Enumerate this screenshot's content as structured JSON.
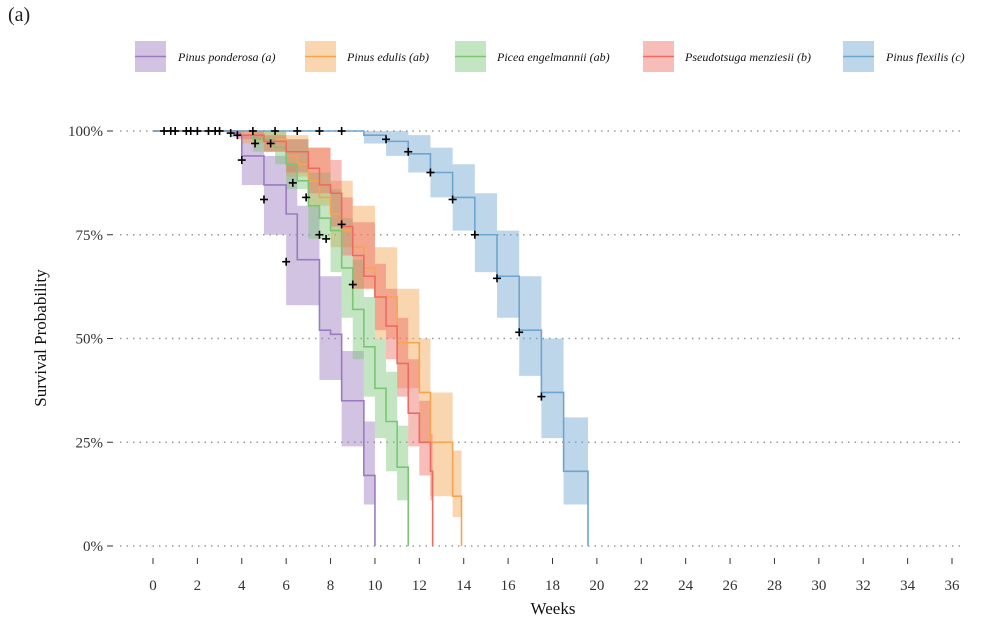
{
  "panel_label": "(a)",
  "chart_data": {
    "type": "line",
    "subtype": "kaplan-meier step curves with confidence bands",
    "title": "",
    "xlabel": "Weeks",
    "ylabel": "Survival Probability",
    "xlim": [
      0,
      36
    ],
    "ylim": [
      0,
      1
    ],
    "x_ticks": [
      0,
      2,
      4,
      6,
      8,
      10,
      12,
      14,
      16,
      18,
      20,
      22,
      24,
      26,
      28,
      30,
      32,
      34,
      36
    ],
    "y_ticks": [
      0,
      0.25,
      0.5,
      0.75,
      1.0
    ],
    "y_tick_labels": [
      "0%",
      "25%",
      "50%",
      "75%",
      "100%"
    ],
    "grid": "horizontal dotted",
    "legend_position": "top",
    "series": [
      {
        "name": "Pinus ponderosa (a)",
        "color": "#9b7bbf",
        "steps": [
          [
            0,
            1.0
          ],
          [
            3.5,
            0.995
          ],
          [
            4,
            0.94
          ],
          [
            5,
            0.87
          ],
          [
            6,
            0.8
          ],
          [
            6.5,
            0.69
          ],
          [
            7.5,
            0.52
          ],
          [
            8,
            0.51
          ],
          [
            8.5,
            0.35
          ],
          [
            9.5,
            0.17
          ],
          [
            10,
            0.0
          ]
        ],
        "lower": [
          [
            0,
            1.0
          ],
          [
            3.5,
            0.985
          ],
          [
            4,
            0.87
          ],
          [
            5,
            0.75
          ],
          [
            6,
            0.58
          ],
          [
            6.5,
            0.58
          ],
          [
            7.5,
            0.4
          ],
          [
            8.5,
            0.24
          ],
          [
            9.5,
            0.1
          ],
          [
            10,
            0.0
          ]
        ],
        "upper": [
          [
            0,
            1.0
          ],
          [
            3.5,
            1.0
          ],
          [
            4,
            0.99
          ],
          [
            5,
            0.94
          ],
          [
            6,
            0.92
          ],
          [
            6.5,
            0.82
          ],
          [
            7.5,
            0.65
          ],
          [
            8.5,
            0.47
          ],
          [
            9.5,
            0.3
          ],
          [
            10,
            0.0
          ]
        ],
        "censored_x": [
          0.5,
          0.8,
          1.0,
          1.5,
          1.7,
          2.0,
          2.5,
          2.8,
          3.0,
          3.5,
          4.0,
          4.6,
          5.0,
          6.0
        ],
        "censored_y": [
          1.0,
          1.0,
          1.0,
          1.0,
          1.0,
          1.0,
          1.0,
          1.0,
          1.0,
          0.995,
          0.93,
          0.97,
          0.835,
          0.685
        ]
      },
      {
        "name": "Pinus edulis (ab)",
        "color": "#f5a550",
        "steps": [
          [
            0,
            1.0
          ],
          [
            4,
            0.99
          ],
          [
            5,
            0.98
          ],
          [
            6,
            0.94
          ],
          [
            6.5,
            0.92
          ],
          [
            7,
            0.88
          ],
          [
            7.5,
            0.84
          ],
          [
            8,
            0.8
          ],
          [
            8.5,
            0.76
          ],
          [
            9,
            0.72
          ],
          [
            9.5,
            0.67
          ],
          [
            10,
            0.6
          ],
          [
            11,
            0.49
          ],
          [
            12,
            0.37
          ],
          [
            12.5,
            0.25
          ],
          [
            13.5,
            0.12
          ],
          [
            13.9,
            0.0
          ]
        ],
        "lower": [
          [
            0,
            1.0
          ],
          [
            4,
            0.97
          ],
          [
            5,
            0.95
          ],
          [
            6,
            0.89
          ],
          [
            7,
            0.82
          ],
          [
            8,
            0.72
          ],
          [
            9,
            0.62
          ],
          [
            10,
            0.5
          ],
          [
            11,
            0.38
          ],
          [
            12,
            0.25
          ],
          [
            12.5,
            0.12
          ],
          [
            13.5,
            0.07
          ],
          [
            13.9,
            0.0
          ]
        ],
        "upper": [
          [
            0,
            1.0
          ],
          [
            4,
            1.0
          ],
          [
            5,
            1.0
          ],
          [
            6,
            0.99
          ],
          [
            7,
            0.96
          ],
          [
            8,
            0.88
          ],
          [
            9,
            0.82
          ],
          [
            10,
            0.72
          ],
          [
            11,
            0.62
          ],
          [
            12,
            0.5
          ],
          [
            12.5,
            0.37
          ],
          [
            13.5,
            0.23
          ],
          [
            13.9,
            0.0
          ]
        ],
        "censored_x": [],
        "censored_y": []
      },
      {
        "name": "Picea engelmannii (ab)",
        "color": "#7cc576",
        "steps": [
          [
            0,
            1.0
          ],
          [
            4.5,
            0.98
          ],
          [
            5.5,
            0.96
          ],
          [
            6,
            0.92
          ],
          [
            6.5,
            0.88
          ],
          [
            7,
            0.82
          ],
          [
            7.5,
            0.79
          ],
          [
            8,
            0.76
          ],
          [
            8.5,
            0.67
          ],
          [
            9,
            0.57
          ],
          [
            9.5,
            0.48
          ],
          [
            10,
            0.38
          ],
          [
            10.5,
            0.3
          ],
          [
            11,
            0.19
          ],
          [
            11.5,
            0.0
          ]
        ],
        "lower": [
          [
            0,
            1.0
          ],
          [
            4.5,
            0.95
          ],
          [
            5.5,
            0.92
          ],
          [
            6,
            0.86
          ],
          [
            7,
            0.74
          ],
          [
            8,
            0.66
          ],
          [
            8.5,
            0.55
          ],
          [
            9,
            0.45
          ],
          [
            9.5,
            0.36
          ],
          [
            10,
            0.26
          ],
          [
            10.5,
            0.18
          ],
          [
            11,
            0.11
          ],
          [
            11.5,
            0.0
          ]
        ],
        "upper": [
          [
            0,
            1.0
          ],
          [
            4.5,
            1.0
          ],
          [
            5.5,
            1.0
          ],
          [
            6,
            0.98
          ],
          [
            7,
            0.9
          ],
          [
            8,
            0.86
          ],
          [
            8.5,
            0.79
          ],
          [
            9,
            0.69
          ],
          [
            9.5,
            0.6
          ],
          [
            10,
            0.5
          ],
          [
            10.5,
            0.42
          ],
          [
            11,
            0.29
          ],
          [
            11.5,
            0.0
          ]
        ],
        "censored_x": [
          6.3,
          6.9
        ],
        "censored_y": [
          0.875,
          0.84
        ]
      },
      {
        "name": "Pseudotsuga menziesii (b)",
        "color": "#ec6c64",
        "steps": [
          [
            0,
            1.0
          ],
          [
            3.8,
            0.99
          ],
          [
            5,
            0.975
          ],
          [
            6,
            0.95
          ],
          [
            7,
            0.91
          ],
          [
            7.5,
            0.87
          ],
          [
            8,
            0.85
          ],
          [
            8.5,
            0.77
          ],
          [
            9,
            0.7
          ],
          [
            9.5,
            0.65
          ],
          [
            10,
            0.6
          ],
          [
            10.5,
            0.53
          ],
          [
            11,
            0.44
          ],
          [
            11.5,
            0.32
          ],
          [
            12,
            0.25
          ],
          [
            12.5,
            0.18
          ],
          [
            12.6,
            0.0
          ]
        ],
        "lower": [
          [
            0,
            1.0
          ],
          [
            3.8,
            0.98
          ],
          [
            5,
            0.95
          ],
          [
            6,
            0.9
          ],
          [
            7,
            0.85
          ],
          [
            8,
            0.77
          ],
          [
            8.5,
            0.7
          ],
          [
            9,
            0.62
          ],
          [
            10,
            0.52
          ],
          [
            10.5,
            0.45
          ],
          [
            11,
            0.36
          ],
          [
            11.5,
            0.24
          ],
          [
            12,
            0.17
          ],
          [
            12.5,
            0.11
          ],
          [
            12.6,
            0.0
          ]
        ],
        "upper": [
          [
            0,
            1.0
          ],
          [
            3.8,
            1.0
          ],
          [
            5,
            0.99
          ],
          [
            6,
            0.98
          ],
          [
            7,
            0.96
          ],
          [
            8,
            0.93
          ],
          [
            8.5,
            0.84
          ],
          [
            9,
            0.78
          ],
          [
            10,
            0.68
          ],
          [
            10.5,
            0.62
          ],
          [
            11,
            0.55
          ],
          [
            11.5,
            0.45
          ],
          [
            12,
            0.35
          ],
          [
            12.5,
            0.27
          ],
          [
            12.6,
            0.0
          ]
        ],
        "censored_x": [
          3.8,
          5.3,
          7.5,
          7.8,
          8.5,
          9.0
        ],
        "censored_y": [
          0.99,
          0.97,
          0.75,
          0.74,
          0.775,
          0.63
        ]
      },
      {
        "name": "Pinus flexilis (c)",
        "color": "#6ea5cf",
        "steps": [
          [
            0,
            1.0
          ],
          [
            9.5,
            0.99
          ],
          [
            10.5,
            0.975
          ],
          [
            11.5,
            0.945
          ],
          [
            12.5,
            0.9
          ],
          [
            13.5,
            0.84
          ],
          [
            14.5,
            0.75
          ],
          [
            15.5,
            0.65
          ],
          [
            16.5,
            0.52
          ],
          [
            17.5,
            0.37
          ],
          [
            18.5,
            0.18
          ],
          [
            19.6,
            0.0
          ]
        ],
        "lower": [
          [
            0,
            1.0
          ],
          [
            9.5,
            0.97
          ],
          [
            10.5,
            0.94
          ],
          [
            11.5,
            0.9
          ],
          [
            12.5,
            0.84
          ],
          [
            13.5,
            0.76
          ],
          [
            14.5,
            0.66
          ],
          [
            15.5,
            0.55
          ],
          [
            16.5,
            0.41
          ],
          [
            17.5,
            0.26
          ],
          [
            18.5,
            0.1
          ],
          [
            19.6,
            0.0
          ]
        ],
        "upper": [
          [
            0,
            1.0
          ],
          [
            9.5,
            1.0
          ],
          [
            10.5,
            1.0
          ],
          [
            11.5,
            0.99
          ],
          [
            12.5,
            0.96
          ],
          [
            13.5,
            0.92
          ],
          [
            14.5,
            0.85
          ],
          [
            15.5,
            0.76
          ],
          [
            16.5,
            0.65
          ],
          [
            17.5,
            0.5
          ],
          [
            18.5,
            0.31
          ],
          [
            19.6,
            0.0
          ]
        ],
        "censored_x": [
          4.5,
          5.5,
          6.5,
          7.5,
          8.5,
          10.5,
          11.5,
          12.5,
          13.5,
          14.5,
          15.5,
          16.5,
          17.5
        ],
        "censored_y": [
          1.0,
          1.0,
          1.0,
          1.0,
          1.0,
          0.98,
          0.95,
          0.9,
          0.835,
          0.75,
          0.645,
          0.515,
          0.36
        ]
      }
    ]
  }
}
